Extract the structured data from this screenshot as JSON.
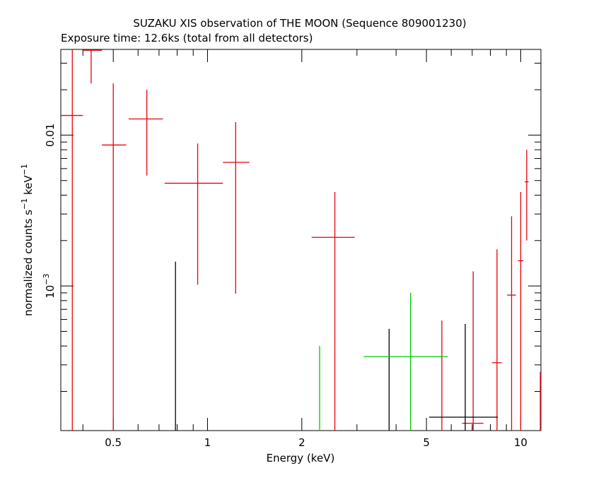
{
  "chart_data": {
    "type": "scatter",
    "title": "SUZAKU XIS observation of THE MOON (Sequence 809001230)",
    "subtitle": "Exposure time: 12.6ks (total from all detectors)",
    "xlabel": "Energy (keV)",
    "ylabel": "normalized counts s",
    "ylabel_sup1": "−1",
    "ylabel_mid": " keV",
    "ylabel_sup2": "−1",
    "x_scale": "log",
    "y_scale": "log",
    "xlim": [
      0.34,
      11.6
    ],
    "ylim": [
      0.00011,
      0.037
    ],
    "grid": false,
    "x_ticks": [
      {
        "value": 0.5,
        "label": "0.5"
      },
      {
        "value": 1,
        "label": "1"
      },
      {
        "value": 2,
        "label": "2"
      },
      {
        "value": 5,
        "label": "5"
      },
      {
        "value": 10,
        "label": "10"
      }
    ],
    "y_ticks": [
      {
        "value": 0.001,
        "label": "10",
        "sup": "−3"
      },
      {
        "value": 0.01,
        "label": "0.01",
        "sup": ""
      }
    ],
    "series": [
      {
        "color": "#e8000b",
        "points": [
          {
            "x": 0.37,
            "xlo": 0.34,
            "xhi": 0.4,
            "y": 0.0135,
            "ylo": 0.00011,
            "yhi": 0.037
          },
          {
            "x": 0.425,
            "xlo": 0.4,
            "xhi": 0.46,
            "y": 0.0365,
            "ylo": 0.022,
            "yhi": 0.037
          },
          {
            "x": 0.5,
            "xlo": 0.46,
            "xhi": 0.55,
            "y": 0.0086,
            "ylo": 0.00011,
            "yhi": 0.022
          },
          {
            "x": 0.64,
            "xlo": 0.56,
            "xhi": 0.72,
            "y": 0.0128,
            "ylo": 0.0054,
            "yhi": 0.02
          },
          {
            "x": 0.93,
            "xlo": 0.73,
            "xhi": 1.12,
            "y": 0.0048,
            "ylo": 0.00102,
            "yhi": 0.0088
          },
          {
            "x": 1.23,
            "xlo": 1.12,
            "xhi": 1.36,
            "y": 0.0066,
            "ylo": 0.00089,
            "yhi": 0.0122
          },
          {
            "x": 2.55,
            "xlo": 2.15,
            "xhi": 2.95,
            "y": 0.0021,
            "ylo": 0.00011,
            "yhi": 0.0042
          },
          {
            "x": 5.6,
            "xlo": 5.6,
            "xhi": 5.6,
            "y": 0.00011,
            "ylo": 0.00011,
            "yhi": 0.00059
          },
          {
            "x": 7.05,
            "xlo": 6.5,
            "xhi": 7.6,
            "y": 0.000123,
            "ylo": 0.00011,
            "yhi": 0.00125
          },
          {
            "x": 8.4,
            "xlo": 8.1,
            "xhi": 8.7,
            "y": 0.00031,
            "ylo": 0.00011,
            "yhi": 0.00175
          },
          {
            "x": 9.35,
            "xlo": 9.05,
            "xhi": 9.65,
            "y": 0.00087,
            "ylo": 0.00011,
            "yhi": 0.0029
          },
          {
            "x": 10.0,
            "xlo": 9.8,
            "xhi": 10.2,
            "y": 0.00147,
            "ylo": 0.00011,
            "yhi": 0.0042
          },
          {
            "x": 10.45,
            "xlo": 10.3,
            "xhi": 10.6,
            "y": 0.0049,
            "ylo": 0.002,
            "yhi": 0.008
          },
          {
            "x": 11.55,
            "xlo": 11.55,
            "xhi": 11.55,
            "y": 0.00011,
            "ylo": 0.00011,
            "yhi": 0.00027
          }
        ]
      },
      {
        "color": "#000000",
        "points": [
          {
            "x": 0.79,
            "xlo": 0.79,
            "xhi": 0.79,
            "y": 0.00011,
            "ylo": 0.00011,
            "yhi": 0.00145
          },
          {
            "x": 3.8,
            "xlo": 3.8,
            "xhi": 3.8,
            "y": 0.00011,
            "ylo": 0.00011,
            "yhi": 0.00052
          },
          {
            "x": 6.65,
            "xlo": 5.1,
            "xhi": 8.45,
            "y": 0.000135,
            "ylo": 0.00011,
            "yhi": 0.00056
          }
        ]
      },
      {
        "color": "#00c800",
        "points": [
          {
            "x": 2.28,
            "xlo": 2.28,
            "xhi": 2.28,
            "y": 0.00011,
            "ylo": 0.00011,
            "yhi": 0.0004
          },
          {
            "x": 4.45,
            "xlo": 3.15,
            "xhi": 5.85,
            "y": 0.00034,
            "ylo": 0.00011,
            "yhi": 0.0009
          }
        ]
      }
    ]
  }
}
